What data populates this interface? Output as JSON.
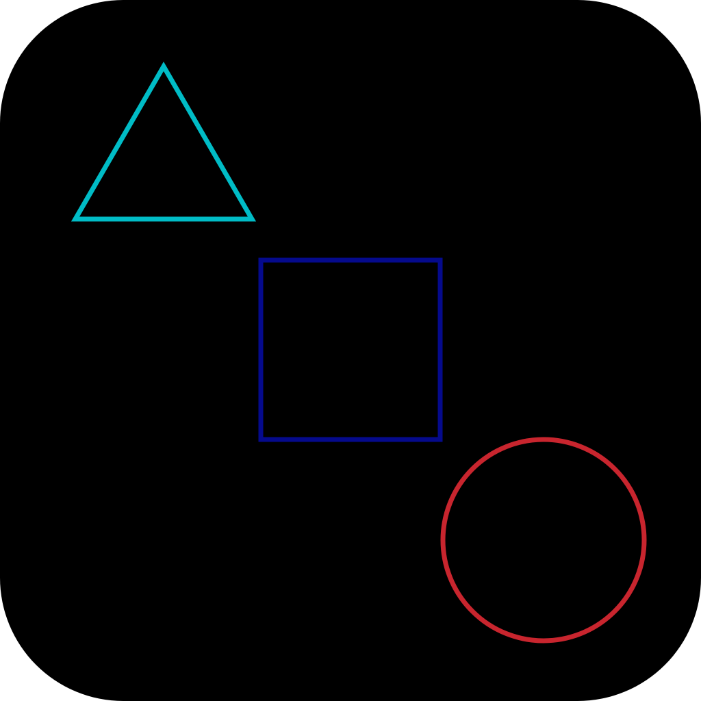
{
  "icon": {
    "background_color": "#000000",
    "shapes": [
      {
        "name": "triangle",
        "stroke_color": "#00BCC6"
      },
      {
        "name": "square",
        "stroke_color": "#050A8C"
      },
      {
        "name": "circle",
        "stroke_color": "#C8252E"
      }
    ]
  }
}
